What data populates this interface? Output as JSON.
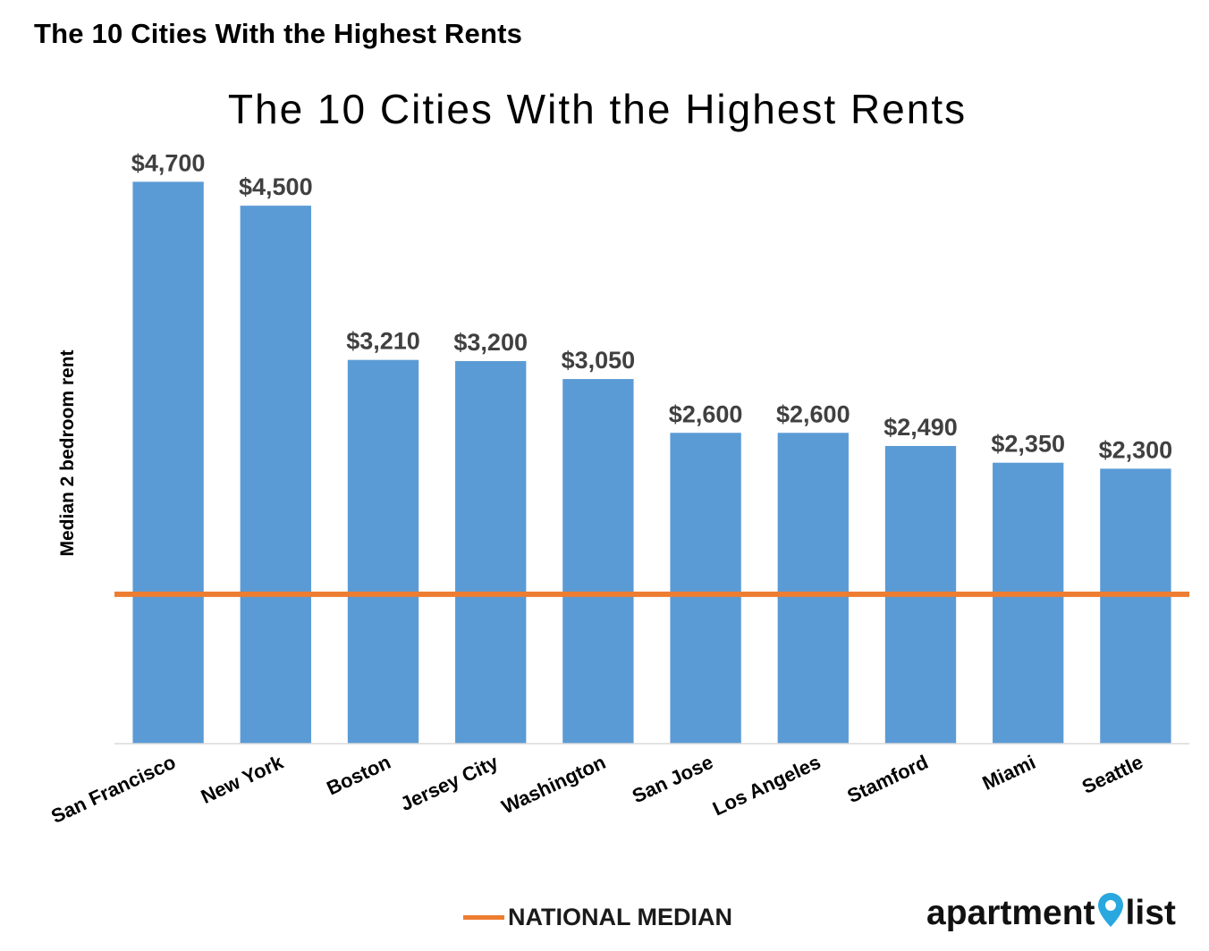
{
  "page_heading": "The 10 Cities With the Highest Rents",
  "colors": {
    "bar": "#5b9bd5",
    "median_line": "#ed7d31",
    "logo_pin": "#29a8df"
  },
  "chart_data": {
    "type": "bar",
    "title": "The 10 Cities With the Highest Rents",
    "ylabel": "Median 2 bedroom rent",
    "xlabel": "",
    "categories": [
      "San Francisco",
      "New York",
      "Boston",
      "Jersey City",
      "Washington",
      "San Jose",
      "Los Angeles",
      "Stamford",
      "Miami",
      "Seattle"
    ],
    "values": [
      4700,
      4500,
      3210,
      3200,
      3050,
      2600,
      2600,
      2490,
      2350,
      2300
    ],
    "value_labels": [
      "$4,700",
      "$4,500",
      "$3,210",
      "$3,200",
      "$3,050",
      "$2,600",
      "$2,600",
      "$2,490",
      "$2,350",
      "$2,300"
    ],
    "reference_line": {
      "name": "NATIONAL MEDIAN",
      "value": 1250
    },
    "ylim": [
      0,
      4800
    ],
    "grid": false,
    "legend": "bottom-center"
  },
  "legend": {
    "label": "NATIONAL MEDIAN"
  },
  "logo": {
    "left_text": "apartment",
    "right_text": "list",
    "icon": "map-pin-icon"
  }
}
